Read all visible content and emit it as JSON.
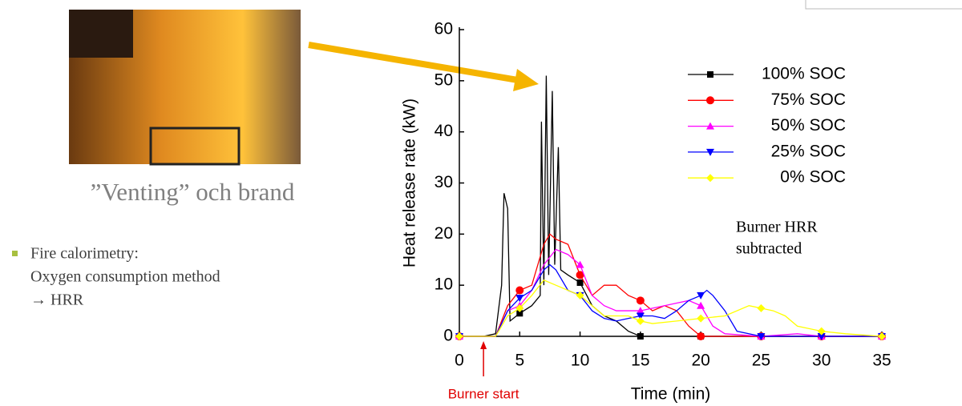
{
  "slide": {
    "caption": "”Venting” och brand",
    "bullet": [
      "Fire calorimetry:",
      "Oxygen consumption method",
      "→ HRR"
    ]
  },
  "chart_data": {
    "type": "line",
    "x_label": "Time (min)",
    "y_label": "Heat release rate (kW)",
    "xlim": [
      0,
      35
    ],
    "ylim": [
      0,
      60
    ],
    "xticks": [
      0,
      5,
      10,
      15,
      20,
      25,
      30,
      35
    ],
    "yticks": [
      0,
      10,
      20,
      30,
      40,
      50,
      60
    ],
    "annotation": [
      "Burner HRR",
      "subtracted"
    ],
    "burner_start": {
      "x": 2,
      "label": "Burner start"
    },
    "series": [
      {
        "name": "100% SOC",
        "color": "#000000",
        "marker": "square",
        "x": [
          0,
          2,
          3,
          3.5,
          3.7,
          4,
          4.2,
          5,
          6,
          6.7,
          6.8,
          7,
          7.2,
          7.4,
          7.7,
          7.9,
          8.2,
          8.4,
          9,
          10,
          11,
          12,
          13,
          14,
          15,
          20,
          25,
          30,
          35
        ],
        "values": [
          0,
          0,
          0.5,
          10,
          28,
          25,
          3,
          4.5,
          6,
          8,
          42,
          10,
          51,
          12,
          48,
          14,
          37,
          13,
          12,
          10.5,
          6,
          4,
          3,
          1,
          0,
          0,
          0,
          0,
          0
        ]
      },
      {
        "name": "75% SOC",
        "color": "#ff0000",
        "marker": "circle",
        "x": [
          0,
          3,
          4,
          5,
          6,
          7,
          7.5,
          8,
          9,
          10,
          11,
          12,
          13,
          14,
          15,
          16,
          17,
          18,
          19,
          20,
          25,
          30,
          35
        ],
        "values": [
          0,
          0,
          6,
          9,
          10,
          18,
          20,
          19,
          18,
          12,
          8,
          10,
          10,
          8,
          7,
          5,
          6,
          5,
          2,
          0,
          0,
          0,
          0
        ]
      },
      {
        "name": "50% SOC",
        "color": "#ff00ff",
        "marker": "triangle-up",
        "x": [
          0,
          3,
          4,
          5,
          6,
          7,
          8,
          9,
          10,
          11,
          12,
          13,
          14,
          15,
          16,
          17,
          18,
          19,
          20,
          21,
          22,
          25,
          28,
          30,
          35
        ],
        "values": [
          0,
          0,
          5,
          6,
          9,
          14,
          17,
          16,
          14,
          8,
          6,
          5,
          5,
          5,
          5.5,
          6,
          6.5,
          7,
          6,
          2,
          0.5,
          0,
          0.5,
          0,
          0
        ]
      },
      {
        "name": "25% SOC",
        "color": "#0000ff",
        "marker": "triangle-down",
        "x": [
          0,
          3,
          4,
          5,
          6,
          7,
          7.5,
          8,
          9,
          10,
          11,
          12,
          13,
          14,
          15,
          16,
          17,
          18,
          19,
          20,
          20.5,
          21,
          22,
          23,
          25,
          30,
          35
        ],
        "values": [
          0,
          0,
          5,
          7.5,
          9,
          13,
          14,
          13,
          9,
          8,
          5,
          3.5,
          3,
          3.5,
          4,
          4,
          3.5,
          5,
          7,
          8,
          9,
          8,
          5,
          1,
          0,
          0,
          0
        ]
      },
      {
        "name": "0% SOC",
        "color": "#ffff00",
        "marker": "diamond",
        "x": [
          0,
          3,
          4,
          5,
          6,
          7,
          8,
          9,
          10,
          11,
          12,
          13,
          14,
          15,
          16,
          18,
          20,
          22,
          24,
          25,
          26,
          27,
          28,
          30,
          32,
          35
        ],
        "values": [
          0,
          0,
          4,
          5.5,
          8,
          11,
          10,
          9,
          8,
          6,
          4,
          4,
          4,
          3,
          2.5,
          3,
          3.5,
          4,
          6,
          5.5,
          5,
          4,
          2,
          1,
          0.5,
          0
        ]
      }
    ]
  }
}
